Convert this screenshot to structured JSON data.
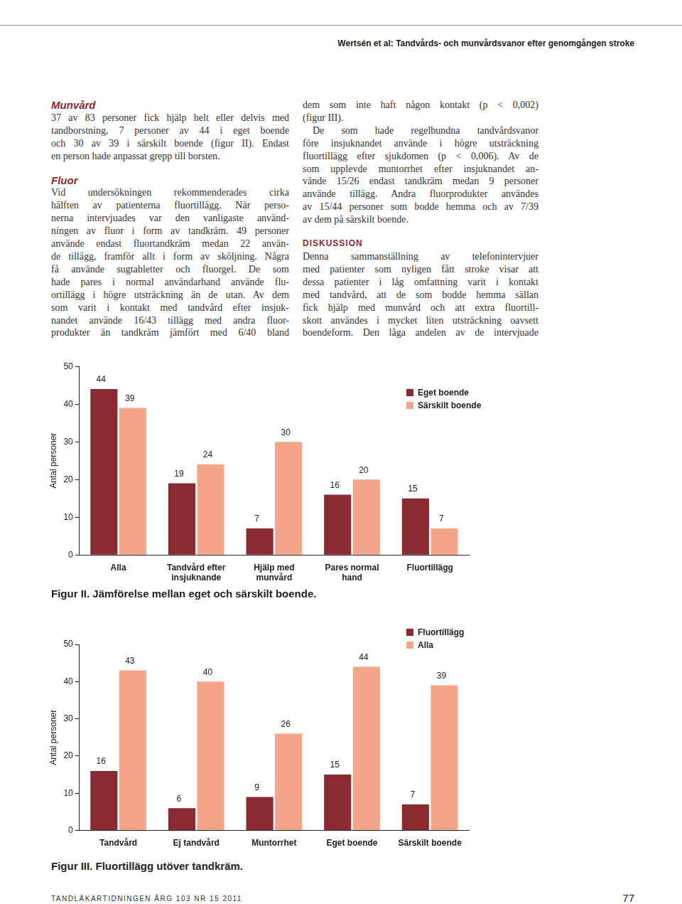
{
  "header": {
    "running_title": "Wertsén et al: Tandvårds- och munvårdsvanor efter genomgången stroke"
  },
  "columns": [
    {
      "blocks": [
        {
          "subheading": "Munvård"
        },
        {
          "lines": [
            "37 av 83 personer fick hjälp helt eller delvis med",
            "tandborstning, 7 personer av 44 i eget boende",
            "och 30 av 39 i särskilt boende (figur II). Endast",
            "en person hade anpassat grepp till borsten."
          ]
        },
        {
          "subheading": "Fluor"
        },
        {
          "lines": [
            "Vid undersökningen rekommenderades cirka",
            "hälften av patienterna fluortillägg. När perso-",
            "nerna intervjuades var den vanligaste använd-",
            "ningen av fluor i form av tandkräm. 49 personer",
            "använde endast fluortandkräm medan 22 använ-",
            "de tillägg, framför allt i form av sköljning. Några",
            "få använde sugtabletter och fluorgel. De som",
            "hade pares i normal användarhand använde flu-",
            "ortillägg i högre utsträckning än de utan. Av dem",
            "som varit i kontakt med tandvård efter insjuk-",
            "nandet använde 16/43 tillägg med andra fluor-",
            "produkter än tandkräm jämfört med 6/40 bland"
          ]
        }
      ]
    },
    {
      "blocks": [
        {
          "lines": [
            "dem som inte haft någon kontakt (p < 0,002)",
            "(figur III)."
          ]
        },
        {
          "lines": [
            "De som hade regelbundna tandvårdsvanor",
            "före insjuknandet använde i högre utsträckning",
            "fluortillägg efter sjukdomen (p < 0,006). Av de",
            "som upplevde muntorrhet efter insjuknandet an-",
            "vände 15/26 endast tandkräm medan 9 personer",
            "använde tillägg. Andra fluorprodukter användes",
            "av 15/44 personer som bodde hemma och av 7/39",
            "av dem på särskilt boende."
          ]
        },
        {
          "heading": "DISKUSSION"
        },
        {
          "lines": [
            "Denna sammanställning av telefonintervjuer",
            "med patienter som nyligen fått stroke visar att",
            "dessa patienter i låg omfattning varit i kontakt",
            "med tandvård, att de som bodde hemma sällan",
            "fick hjälp med munvård och att extra fluortill-",
            "skott användes i mycket liten utsträckning oavsett",
            "boendeform. Den låga andelen av de intervjuade"
          ]
        }
      ]
    }
  ],
  "chart_data": [
    {
      "type": "bar",
      "title": "Figur II. Jämförelse mellan eget och särskilt boende.",
      "y_label": "Antal personer",
      "categories": [
        [
          "Alla"
        ],
        [
          "Tandvård efter",
          "insjuknande"
        ],
        [
          "Hjälp med",
          "munvård"
        ],
        [
          "Pares normal",
          "hand"
        ],
        [
          "Fluortillägg"
        ]
      ],
      "series": [
        {
          "name": "Eget boende",
          "color": "#8b2a31",
          "values": [
            44,
            19,
            7,
            16,
            15
          ]
        },
        {
          "name": "Särskilt boende",
          "color": "#f4a58a",
          "values": [
            39,
            24,
            30,
            20,
            7
          ]
        }
      ],
      "ylim": [
        0,
        50
      ],
      "yticks": [
        0,
        10,
        20,
        30,
        40,
        50
      ],
      "grid": false,
      "data_labels": true,
      "legend": "top right"
    },
    {
      "type": "bar",
      "title": "Figur III. Fluortillägg utöver tandkräm.",
      "y_label": "Antal personer",
      "categories": [
        [
          "Tandvård"
        ],
        [
          "Ej tandvård"
        ],
        [
          "Muntorrhet"
        ],
        [
          "Eget boende"
        ],
        [
          "Särskilt boende"
        ]
      ],
      "series": [
        {
          "name": "Fluortillägg",
          "color": "#8b2a31",
          "values": [
            16,
            6,
            9,
            15,
            7
          ]
        },
        {
          "name": "Alla",
          "color": "#f4a58a",
          "values": [
            43,
            40,
            26,
            44,
            39
          ]
        }
      ],
      "ylim": [
        0,
        50
      ],
      "yticks": [
        0,
        10,
        20,
        30,
        40,
        50
      ],
      "grid": false,
      "data_labels": true,
      "legend": "top right"
    }
  ],
  "footer": {
    "journal": "TANDLÄKARTIDNINGEN ÅRG 103 NR 15 2011",
    "page": 77
  }
}
